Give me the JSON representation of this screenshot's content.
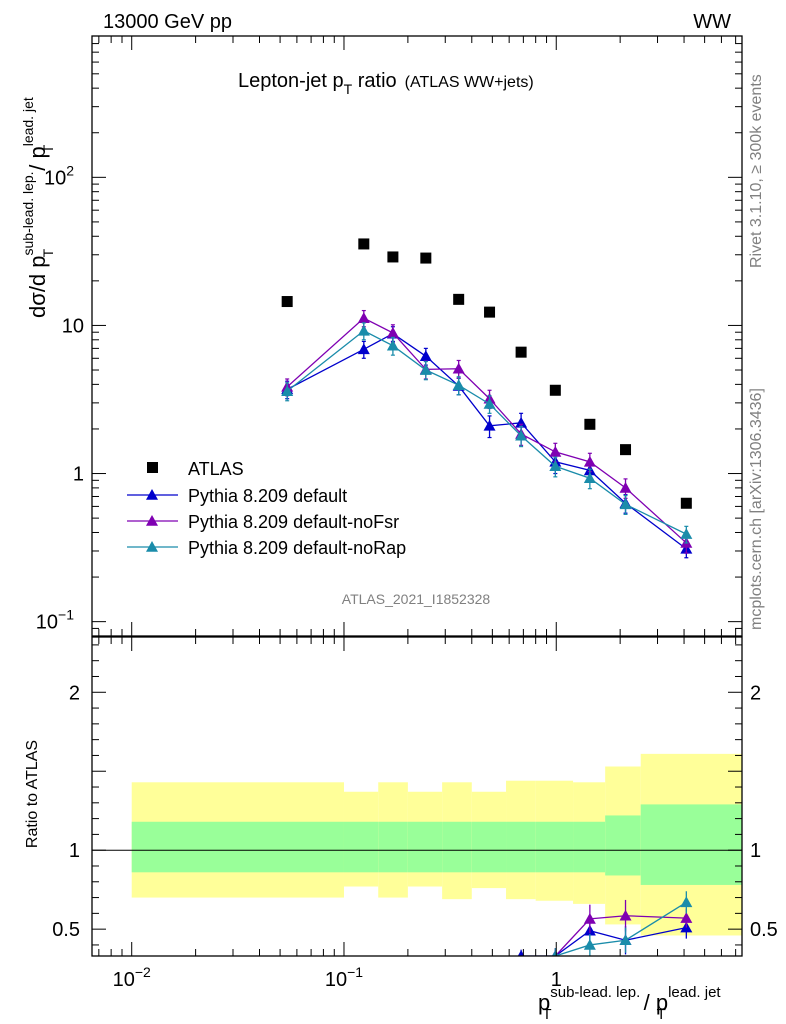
{
  "header": {
    "beam": "13000 GeV pp",
    "process": "WW"
  },
  "side_labels": {
    "rivet": "Rivet 3.1.10, ≥ 300k events",
    "mcplots": "mcplots.cern.ch [arXiv:1306.3436]"
  },
  "analysis_id": "ATLAS_2021_I1852328",
  "title": {
    "main": "Lepton-jet p",
    "sub": "T",
    "suffix": " ratio",
    "small": "(ATLAS WW+jets)"
  },
  "axes": {
    "y_main": {
      "pre": "dσ/d p",
      "sup1": "sub-lead. lep.",
      "sub1": "T",
      "mid": " / p",
      "sup2": "lead. jet",
      "sub2": "T"
    },
    "y_ratio": "Ratio to ATLAS",
    "x": {
      "pre": "p",
      "sup1": "sub-lead. lep.",
      "sub1": "T",
      "mid": " / p",
      "sup2": "lead. jet",
      "sub2": "T"
    }
  },
  "colors": {
    "atlas": "#000000",
    "default": "#0000cc",
    "noFsr": "#7f00b2",
    "noRap": "#1a8caa",
    "band_inner": "#99ff99",
    "band_outer": "#ffff99"
  },
  "chart_data": {
    "type": "scatter",
    "x_scale": "log",
    "y_scale": "log",
    "xlim": [
      0.0065,
      7.5
    ],
    "ylim": [
      0.08,
      900
    ],
    "ratio_ylim": [
      0.33,
      2.35
    ],
    "x_tick_labels": [
      {
        "v": 0.01,
        "label": "10",
        "exp": "−2"
      },
      {
        "v": 0.1,
        "label": "10",
        "exp": "−1"
      },
      {
        "v": 1,
        "label": "1",
        "exp": ""
      }
    ],
    "y_tick_labels": [
      {
        "v": 0.1,
        "label": "10",
        "exp": "−1"
      },
      {
        "v": 1,
        "label": "1",
        "exp": ""
      },
      {
        "v": 10,
        "label": "10",
        "exp": ""
      },
      {
        "v": 100,
        "label": "10",
        "exp": "2"
      }
    ],
    "ratio_tick_labels": [
      {
        "v": 0.5,
        "label": "0.5"
      },
      {
        "v": 1,
        "label": "1"
      },
      {
        "v": 2,
        "label": "2"
      }
    ],
    "legend_position": "bottom-left",
    "series": [
      {
        "name": "ATLAS",
        "color_key": "atlas",
        "marker": "square",
        "x": [
          0.054,
          0.124,
          0.17,
          0.243,
          0.347,
          0.485,
          0.683,
          0.99,
          1.44,
          2.12,
          4.1
        ],
        "y": [
          14.5,
          35.5,
          29,
          28.5,
          15,
          12.3,
          6.6,
          3.65,
          2.15,
          1.45,
          0.63
        ]
      },
      {
        "name": "Pythia 8.209 default",
        "color_key": "default",
        "marker": "triangle",
        "x": [
          0.054,
          0.124,
          0.17,
          0.243,
          0.347,
          0.485,
          0.683,
          0.99,
          1.44,
          2.12,
          4.1
        ],
        "y": [
          3.7,
          6.9,
          8.8,
          6.2,
          3.9,
          2.1,
          2.2,
          1.2,
          1.05,
          0.63,
          0.31
        ],
        "err": [
          0.5,
          0.9,
          1.0,
          0.8,
          0.5,
          0.35,
          0.35,
          0.2,
          0.15,
          0.09,
          0.04
        ]
      },
      {
        "name": "Pythia 8.209 default-noFsr",
        "color_key": "noFsr",
        "marker": "triangle",
        "x": [
          0.054,
          0.124,
          0.17,
          0.243,
          0.347,
          0.485,
          0.683,
          0.99,
          1.44,
          2.12,
          4.1
        ],
        "y": [
          3.85,
          11.2,
          8.9,
          5.05,
          5.1,
          3.2,
          1.85,
          1.4,
          1.2,
          0.8,
          0.34
        ],
        "err": [
          0.5,
          1.4,
          1.2,
          0.7,
          0.7,
          0.45,
          0.3,
          0.2,
          0.17,
          0.12,
          0.05
        ]
      },
      {
        "name": "Pythia 8.209 default-noRap",
        "color_key": "noRap",
        "marker": "triangle",
        "x": [
          0.054,
          0.124,
          0.17,
          0.243,
          0.347,
          0.485,
          0.683,
          0.99,
          1.44,
          2.12,
          4.1
        ],
        "y": [
          3.6,
          9.2,
          7.3,
          5.0,
          3.95,
          2.95,
          1.8,
          1.12,
          0.93,
          0.62,
          0.39
        ],
        "err": [
          0.5,
          1.2,
          1.0,
          0.7,
          0.55,
          0.4,
          0.28,
          0.17,
          0.14,
          0.09,
          0.05
        ]
      }
    ],
    "ratio": {
      "bins": [
        [
          0.01,
          0.1
        ],
        [
          0.1,
          0.145
        ],
        [
          0.145,
          0.2
        ],
        [
          0.2,
          0.29
        ],
        [
          0.29,
          0.4
        ],
        [
          0.4,
          0.58
        ],
        [
          0.58,
          0.8
        ],
        [
          0.8,
          1.2
        ],
        [
          1.2,
          1.7
        ],
        [
          1.7,
          2.5
        ],
        [
          2.5,
          7.5
        ]
      ],
      "inner_lo": [
        0.86,
        0.86,
        0.86,
        0.86,
        0.86,
        0.86,
        0.86,
        0.86,
        0.86,
        0.84,
        0.78
      ],
      "inner_hi": [
        1.18,
        1.18,
        1.18,
        1.18,
        1.18,
        1.18,
        1.18,
        1.18,
        1.18,
        1.22,
        1.29
      ],
      "outer_lo": [
        0.7,
        0.77,
        0.7,
        0.77,
        0.69,
        0.76,
        0.69,
        0.68,
        0.66,
        0.53,
        0.46
      ],
      "outer_hi": [
        1.43,
        1.37,
        1.43,
        1.37,
        1.43,
        1.37,
        1.44,
        1.44,
        1.43,
        1.53,
        1.61
      ],
      "series": [
        {
          "color_key": "default",
          "x": [
            0.683,
            0.99,
            1.44,
            2.12,
            4.1
          ],
          "y": [
            0.33,
            0.33,
            0.49,
            0.43,
            0.51
          ],
          "err": [
            0.04,
            0.04,
            0.09,
            0.09,
            0.07
          ]
        },
        {
          "color_key": "noFsr",
          "x": [
            0.99,
            1.44,
            2.12,
            4.1
          ],
          "y": [
            0.33,
            0.565,
            0.585,
            0.57
          ],
          "err": [
            0.05,
            0.09,
            0.1,
            0.06
          ]
        },
        {
          "color_key": "noRap",
          "x": [
            0.99,
            1.44,
            2.12,
            4.1
          ],
          "y": [
            0.33,
            0.4,
            0.43,
            0.67
          ],
          "err": [
            0.05,
            0.07,
            0.08,
            0.07
          ]
        }
      ]
    }
  }
}
